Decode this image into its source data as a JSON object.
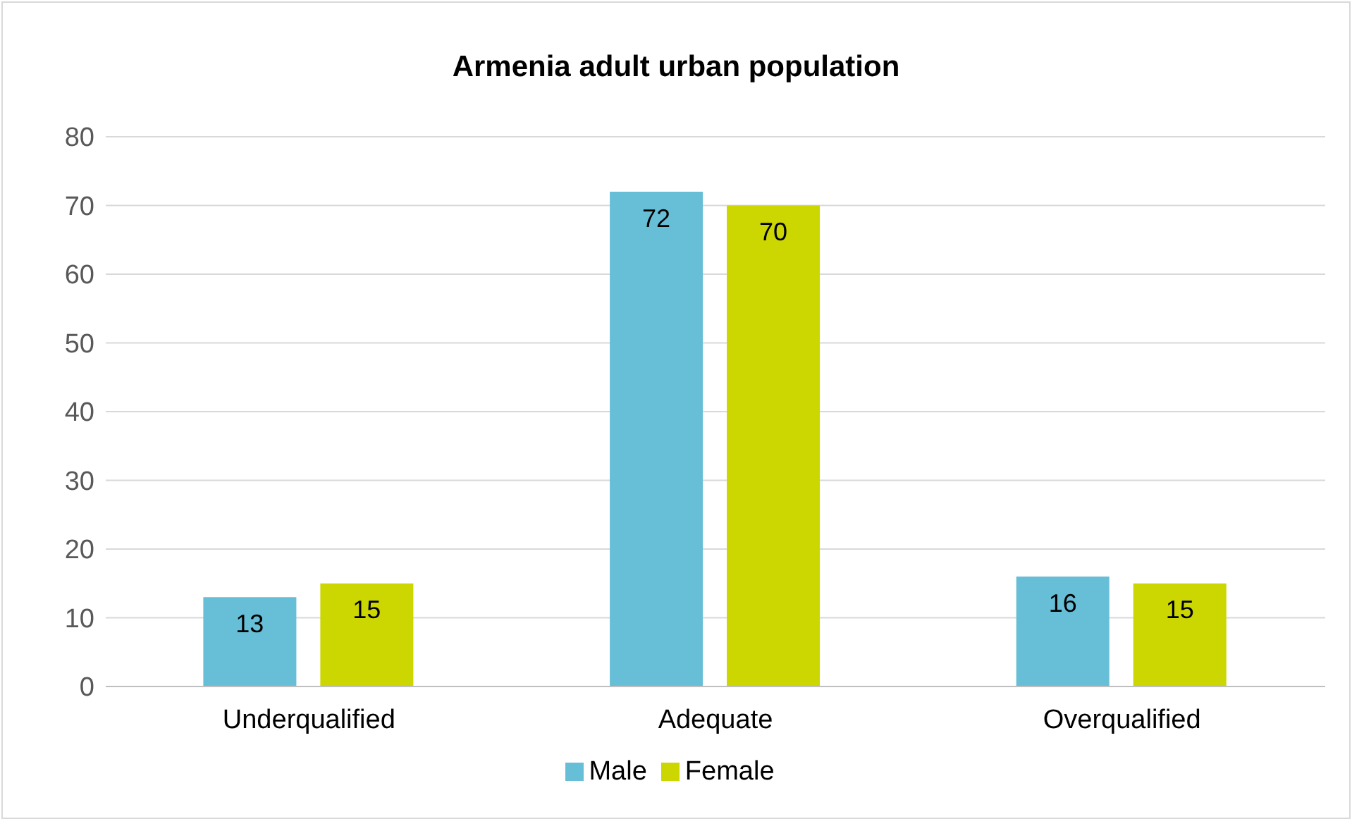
{
  "chart_data": {
    "type": "bar",
    "title": "Armenia adult urban population",
    "categories": [
      "Underqualified",
      "Adequate",
      "Overqualified"
    ],
    "series": [
      {
        "name": "Male",
        "color": "#67bfd7",
        "values": [
          13,
          72,
          16
        ]
      },
      {
        "name": "Female",
        "color": "#ccd600",
        "values": [
          15,
          70,
          15
        ]
      }
    ],
    "ylim": [
      0,
      80
    ],
    "yticks": [
      0,
      10,
      20,
      30,
      40,
      50,
      60,
      70,
      80
    ],
    "grid": "y",
    "legend": "bottom",
    "data_labels": true
  }
}
